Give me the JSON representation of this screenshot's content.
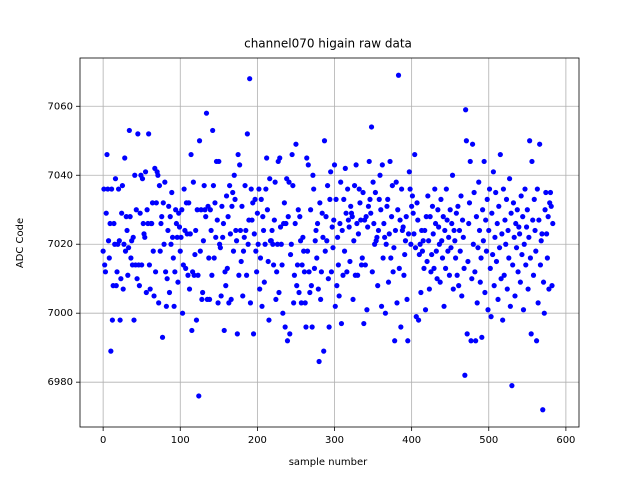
{
  "chart_data": {
    "type": "scatter",
    "title": "channel070 higain raw data",
    "x_label": "sample number",
    "y_label": "ADC Code",
    "color": "#0000ff",
    "grid": true,
    "xlim": [
      -30,
      617
    ],
    "ylim": [
      6967,
      7074
    ],
    "xticks": [
      0,
      100,
      200,
      300,
      400,
      500,
      600
    ],
    "yticks": [
      6980,
      7000,
      7020,
      7040,
      7060
    ],
    "x": [
      0,
      1,
      2,
      3,
      4,
      5,
      6,
      7,
      8,
      9,
      10,
      11,
      12,
      13,
      14,
      15,
      16,
      17,
      18,
      19,
      20,
      21,
      22,
      23,
      24,
      25,
      26,
      27,
      28,
      29,
      30,
      31,
      32,
      33,
      34,
      35,
      36,
      37,
      38,
      39,
      40,
      41,
      42,
      43,
      44,
      45,
      46,
      47,
      48,
      49,
      50,
      51,
      52,
      53,
      54,
      55,
      56,
      57,
      58,
      59,
      60,
      61,
      62,
      63,
      64,
      65,
      66,
      67,
      68,
      69,
      70,
      71,
      72,
      73,
      74,
      75,
      76,
      77,
      78,
      79,
      80,
      81,
      82,
      83,
      84,
      85,
      86,
      87,
      88,
      89,
      90,
      91,
      92,
      93,
      94,
      95,
      96,
      97,
      98,
      99,
      100,
      101,
      102,
      103,
      104,
      105,
      106,
      107,
      108,
      109,
      110,
      111,
      112,
      113,
      114,
      115,
      116,
      117,
      118,
      119,
      120,
      121,
      122,
      123,
      124,
      125,
      126,
      127,
      128,
      129,
      130,
      131,
      132,
      133,
      134,
      135,
      136,
      137,
      138,
      139,
      140,
      141,
      142,
      143,
      144,
      145,
      146,
      147,
      148,
      149,
      150,
      151,
      152,
      153,
      154,
      155,
      156,
      157,
      158,
      159,
      160,
      161,
      162,
      163,
      164,
      165,
      166,
      167,
      168,
      169,
      170,
      171,
      172,
      173,
      174,
      175,
      176,
      177,
      178,
      179,
      180,
      181,
      182,
      183,
      184,
      185,
      186,
      187,
      188,
      189,
      190,
      191,
      192,
      193,
      194,
      195,
      196,
      197,
      198,
      199,
      200,
      201,
      202,
      203,
      204,
      205,
      206,
      207,
      208,
      209,
      210,
      211,
      212,
      213,
      214,
      215,
      216,
      217,
      218,
      219,
      220,
      221,
      222,
      223,
      224,
      225,
      226,
      227,
      228,
      229,
      230,
      231,
      232,
      233,
      234,
      235,
      236,
      237,
      238,
      239,
      240,
      241,
      242,
      243,
      244,
      245,
      246,
      247,
      248,
      249,
      250,
      251,
      252,
      253,
      254,
      255,
      256,
      257,
      258,
      259,
      260,
      261,
      262,
      263,
      264,
      265,
      266,
      267,
      268,
      269,
      270,
      271,
      272,
      273,
      274,
      275,
      276,
      277,
      278,
      279,
      280,
      281,
      282,
      283,
      284,
      285,
      286,
      287,
      288,
      289,
      290,
      291,
      292,
      293,
      294,
      295,
      296,
      297,
      298,
      299,
      300,
      301,
      302,
      303,
      304,
      305,
      306,
      307,
      308,
      309,
      310,
      311,
      312,
      313,
      314,
      315,
      316,
      317,
      318,
      319,
      320,
      321,
      322,
      323,
      324,
      325,
      326,
      327,
      328,
      329,
      330,
      331,
      332,
      333,
      334,
      335,
      336,
      337,
      338,
      339,
      340,
      341,
      342,
      343,
      344,
      345,
      346,
      347,
      348,
      349,
      350,
      351,
      352,
      353,
      354,
      355,
      356,
      357,
      358,
      359,
      360,
      361,
      362,
      363,
      364,
      365,
      366,
      367,
      368,
      369,
      370,
      371,
      372,
      373,
      374,
      375,
      376,
      377,
      378,
      379,
      380,
      381,
      382,
      383,
      384,
      385,
      386,
      387,
      388,
      389,
      390,
      391,
      392,
      393,
      394,
      395,
      396,
      397,
      398,
      399,
      400,
      401,
      402,
      403,
      404,
      405,
      406,
      407,
      408,
      409,
      410,
      411,
      412,
      413,
      414,
      415,
      416,
      417,
      418,
      419,
      420,
      421,
      422,
      423,
      424,
      425,
      426,
      427,
      428,
      429,
      430,
      431,
      432,
      433,
      434,
      435,
      436,
      437,
      438,
      439,
      440,
      441,
      442,
      443,
      444,
      445,
      446,
      447,
      448,
      449,
      450,
      451,
      452,
      453,
      454,
      455,
      456,
      457,
      458,
      459,
      460,
      461,
      462,
      463,
      464,
      465,
      466,
      467,
      468,
      469,
      470,
      471,
      472,
      473,
      474,
      475,
      476,
      477,
      478,
      479,
      480,
      481,
      482,
      483,
      484,
      485,
      486,
      487,
      488,
      489,
      490,
      491,
      492,
      493,
      494,
      495,
      496,
      497,
      498,
      499,
      500,
      501,
      502,
      503,
      504,
      505,
      506,
      507,
      508,
      509,
      510,
      511,
      512,
      513,
      514,
      515,
      516,
      517,
      518,
      519,
      520,
      521,
      522,
      523,
      524,
      525,
      526,
      527,
      528,
      529,
      530,
      531,
      532,
      533,
      534,
      535,
      536,
      537,
      538,
      539,
      540,
      541,
      542,
      543,
      544,
      545,
      546,
      547,
      548,
      549,
      550,
      551,
      552,
      553,
      554,
      555,
      556,
      557,
      558,
      559,
      560,
      561,
      562,
      563,
      564,
      565,
      566,
      567,
      568,
      569,
      570,
      571,
      572,
      573,
      574,
      575,
      576,
      577,
      578,
      579,
      580,
      581,
      582,
      583
    ],
    "values": [
      7018,
      7036,
      7014,
      7012,
      7029,
      7046,
      7036,
      7021,
      7016,
      7026,
      6989,
      7036,
      6998,
      7008,
      7026,
      7020,
      7039,
      7008,
      7012,
      7020,
      7036,
      7021,
      6998,
      7010,
      7029,
      7037,
      7007,
      7020,
      7045,
      7018,
      7028,
      7024,
      7011,
      7019,
      7053,
      7028,
      7016,
      7021,
      7014,
      7022,
      6998,
      7040,
      7014,
      7030,
      7010,
      7052,
      7014,
      7008,
      7029,
      7040,
      7014,
      7039,
      7026,
      7023,
      7022,
      7041,
      7006,
      7030,
      7026,
      7052,
      7014,
      7007,
      7026,
      7026,
      7032,
      7018,
      7005,
      7042,
      7012,
      7032,
      7041,
      7040,
      7003,
      7037,
      7018,
      7026,
      7028,
      6993,
      7032,
      7020,
      7038,
      7012,
      7002,
      7010,
      7024,
      7031,
      7006,
      7028,
      7020,
      7035,
      7022,
      7016,
      7002,
      7012,
      7030,
      7026,
      7022,
      7009,
      7029,
      7025,
      7018,
      7022,
      7030,
      7000,
      7014,
      7036,
      7024,
      7013,
      7032,
      7023,
      7011,
      7032,
      7007,
      7023,
      7046,
      6995,
      7012,
      7038,
      7011,
      7017,
      7024,
      6998,
      7030,
      7011,
      6976,
      7050,
      7018,
      7030,
      7004,
      7006,
      7021,
      7037,
      7030,
      7028,
      7058,
      7004,
      7031,
      7016,
      7004,
      7030,
      7024,
      7011,
      7053,
      7037,
      7016,
      7032,
      7022,
      7044,
      7027,
      7003,
      7044,
      7020,
      7019,
      7005,
      7031,
      7022,
      7026,
      6995,
      7012,
      7008,
      7034,
      7013,
      7028,
      7003,
      7037,
      7023,
      7004,
      7031,
      7035,
      7018,
      7040,
      7033,
      7024,
      7021,
      6994,
      7046,
      7011,
      7043,
      7024,
      7015,
      7031,
      7005,
      7018,
      7022,
      7037,
      7024,
      7011,
      7052,
      7020,
      7027,
      7068,
      7003,
      7036,
      7027,
      7032,
      6994,
      7023,
      7033,
      7018,
      7012,
      7029,
      7020,
      7036,
      7007,
      7016,
      7033,
      7002,
      7028,
      7024,
      7009,
      7020,
      7036,
      7045,
      7030,
      7015,
      6998,
      7039,
      7021,
      7021,
      7024,
      7020,
      7014,
      7027,
      7038,
      7004,
      7012,
      7020,
      7044,
      7006,
      7045,
      7025,
      7020,
      7014,
      7000,
      7026,
      7032,
      6996,
      7026,
      7039,
      6992,
      7028,
      7038,
      6994,
      7017,
      7020,
      7046,
      7037,
      7003,
      7011,
      7026,
      7049,
      7008,
      7014,
      7030,
      7006,
      7028,
      7021,
      7003,
      7014,
      7022,
      7018,
      7012,
      7003,
      6996,
      7045,
      7018,
      7043,
      7012,
      7006,
      7030,
      7008,
      6996,
      7040,
      7036,
      7013,
      7021,
      7024,
      7016,
      7026,
      7007,
      6986,
      7032,
      7004,
      7012,
      7029,
      7022,
      6989,
      7050,
      7018,
      7028,
      7021,
      7037,
      7010,
      6996,
      7033,
      7041,
      7012,
      7025,
      7019,
      7027,
      7043,
      7002,
      7033,
      7008,
      7022,
      7014,
      7005,
      7026,
      7038,
      6997,
      7024,
      7011,
      7033,
      7018,
      7042,
      7029,
      7012,
      7036,
      7027,
      7025,
      7015,
      7031,
      7029,
      7028,
      7004,
      7021,
      7037,
      7011,
      7043,
      7026,
      7011,
      7023,
      7036,
      7032,
      7027,
      7014,
      7016,
      7035,
      6997,
      7027,
      7014,
      7028,
      7001,
      7025,
      7031,
      7044,
      7033,
      7029,
      7054,
      7012,
      7038,
      7026,
      7020,
      7035,
      7021,
      7022,
      7008,
      7024,
      7033,
      7040,
      7030,
      7002,
      7043,
      7016,
      7026,
      7022,
      7000,
      7020,
      7031,
      7033,
      7009,
      7023,
      7044,
      7016,
      7028,
      7037,
      7012,
      7019,
      6992,
      7024,
      7038,
      7003,
      7030,
      7069,
      7013,
      7027,
      6996,
      7036,
      7024,
      7025,
      7011,
      7017,
      7021,
      7028,
      7004,
      6992,
      7023,
      7041,
      7036,
      7020,
      7031,
      7034,
      7029,
      7023,
      7046,
      7019,
      6999,
      7032,
      7027,
      6998,
      7017,
      7020,
      7006,
      7024,
      7018,
      7021,
      7013,
      7024,
      7001,
      7028,
      7015,
      7034,
      7021,
      7007,
      7028,
      7012,
      7017,
      7031,
      7023,
      7013,
      7036,
      7026,
      7018,
      7010,
      7030,
      7025,
      7020,
      7009,
      7033,
      7021,
      7016,
      7028,
      7002,
      7024,
      7013,
      7036,
      7027,
      7018,
      7022,
      7011,
      7030,
      7019,
      7026,
      7040,
      7007,
      7024,
      7021,
      7016,
      7029,
      7011,
      7031,
      7008,
      7024,
      7018,
      7034,
      7005,
      7027,
      7022,
      7013,
      6982,
      7059,
      7050,
      6994,
      7015,
      7026,
      7032,
      7044,
      6992,
      7010,
      7049,
      7020,
      7035,
      7012,
      6992,
      7028,
      7003,
      7019,
      7038,
      7024,
      7009,
      7016,
      6993,
      7030,
      7021,
      7044,
      7006,
      7027,
      7018,
      7033,
      7001,
      7024,
      7036,
      7013,
      6999,
      7029,
      7017,
      7041,
      7008,
      7022,
      7035,
      7015,
      7026,
      7004,
      7031,
      7019,
      7046,
      7010,
      7023,
      6998,
      7036,
      7011,
      7027,
      7020,
      7033,
      7007,
      7024,
      7016,
      7039,
      7002,
      7029,
      6979,
      7014,
      7032,
      7022,
      7005,
      7026,
      7019,
      7030,
      7012,
      7025,
      7023,
      7009,
      7034,
      7017,
      7028,
      7001,
      7020,
      7036,
      7014,
      7025,
      7030,
      7007,
      7022,
      7050,
      7016,
      6994,
      7044,
      7027,
      7011,
      7033,
      7024,
      7018,
      6992,
      7036,
      7003,
      7027,
      7049,
      7014,
      7021,
      7023,
      6972,
      7009,
      7000,
      7030,
      7035,
      7023,
      7016,
      7028,
      7007,
      7032,
      7035,
      7031,
      7008,
      7026
    ]
  }
}
